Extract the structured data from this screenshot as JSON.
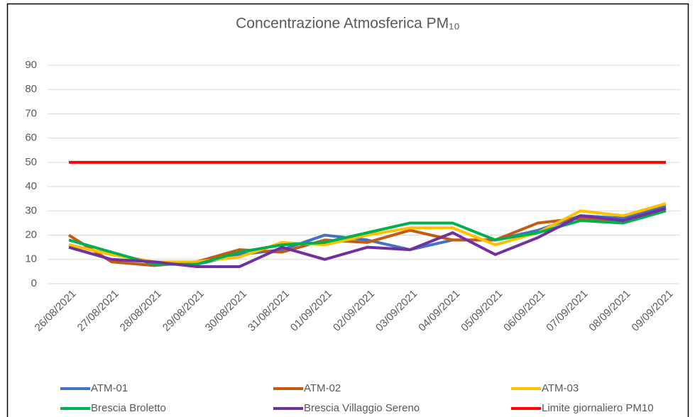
{
  "chart_data": {
    "type": "line",
    "title": "Concentrazione Atmosferica PM₁₀",
    "categories": [
      "26/08/2021",
      "27/08/2021",
      "28/08/2021",
      "29/08/2021",
      "30/08/2021",
      "31/08/2021",
      "01/09/2021",
      "02/09/2021",
      "03/09/2021",
      "04/09/2021",
      "05/09/2021",
      "06/09/2021",
      "07/09/2021",
      "08/09/2021",
      "09/09/2021"
    ],
    "series": [
      {
        "name": "ATM-01",
        "color": "#4472c4",
        "values": [
          16,
          12,
          9,
          8,
          12,
          14,
          20,
          18,
          14,
          18,
          18,
          22,
          28,
          27,
          32
        ]
      },
      {
        "name": "ATM-02",
        "color": "#c55a11",
        "values": [
          20,
          9,
          7.5,
          9,
          14,
          13,
          18,
          17,
          22,
          18,
          18,
          25,
          27,
          26,
          31
        ]
      },
      {
        "name": "ATM-03",
        "color": "#ffc000",
        "values": [
          16,
          12,
          9,
          9,
          11,
          17,
          16,
          20,
          23,
          23,
          16,
          21,
          30,
          28,
          33
        ]
      },
      {
        "name": "Brescia Broletto",
        "color": "#00b050",
        "values": [
          18,
          13,
          8,
          8,
          13,
          16,
          17,
          21,
          25,
          25,
          18,
          21,
          26,
          25,
          30
        ]
      },
      {
        "name": "Brescia Villaggio Sereno",
        "color": "#7030a0",
        "values": [
          15,
          10,
          9,
          7,
          7,
          15,
          10,
          15,
          14,
          21,
          12,
          19,
          28,
          26,
          31
        ]
      },
      {
        "name": "Limite giornaliero PM10",
        "color": "#ff0000",
        "values": [
          50,
          50,
          50,
          50,
          50,
          50,
          50,
          50,
          50,
          50,
          50,
          50,
          50,
          50,
          50
        ]
      }
    ],
    "ylim": [
      0,
      90
    ],
    "yticks": [
      0,
      10,
      20,
      30,
      40,
      50,
      60,
      70,
      80,
      90
    ],
    "grid": true,
    "legend": "bottom"
  }
}
